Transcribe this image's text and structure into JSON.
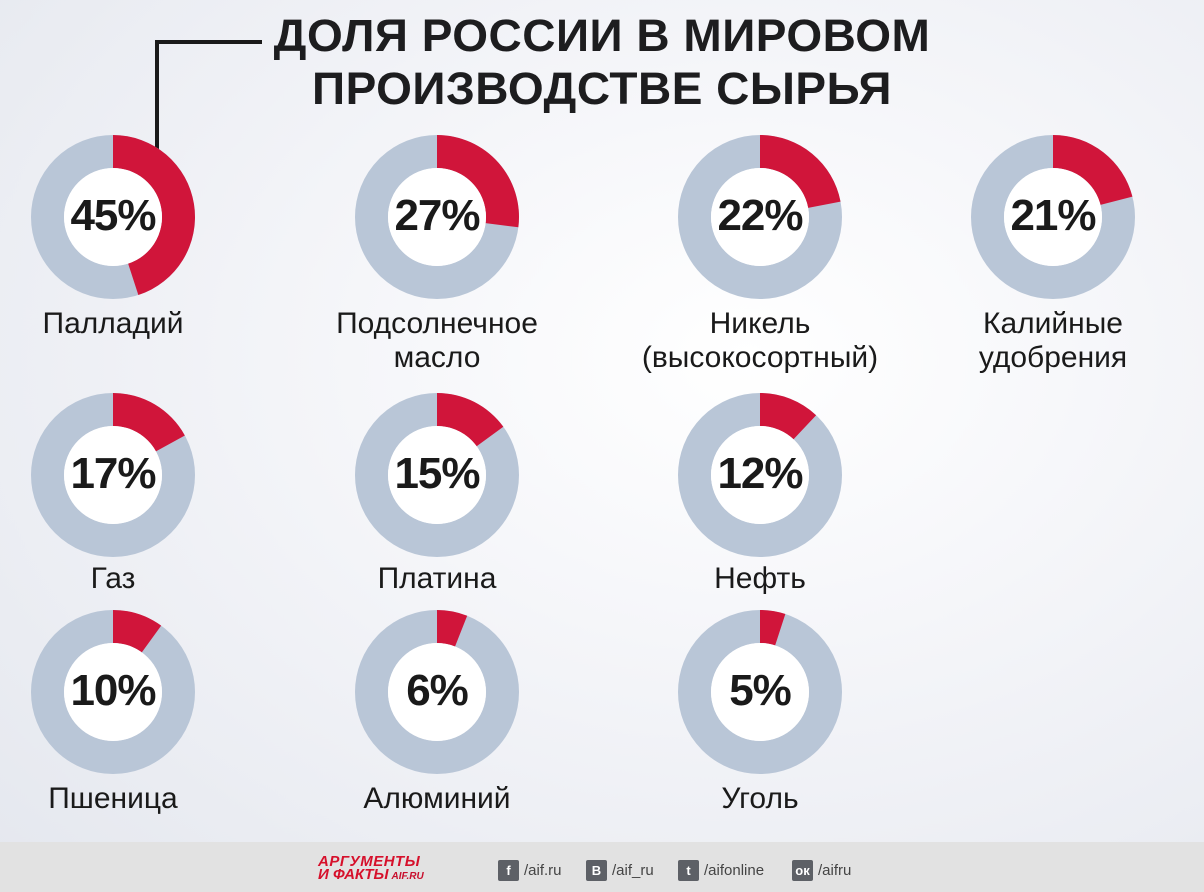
{
  "chart_data": {
    "type": "pie",
    "variant": "donut-grid",
    "title_lines": [
      "ДОЛЯ РОССИИ В МИРОВОМ",
      "ПРОИЗВОДСТВЕ СЫРЬЯ"
    ],
    "unit": "%",
    "colors": {
      "share": "#d0153a",
      "rest": "#b9c6d7",
      "center": "#ffffff"
    },
    "items": [
      {
        "value": 45,
        "value_label": "45%",
        "label_lines": [
          "Палладий"
        ]
      },
      {
        "value": 27,
        "value_label": "27%",
        "label_lines": [
          "Подсолнечное",
          "масло"
        ]
      },
      {
        "value": 22,
        "value_label": "22%",
        "label_lines": [
          "Никель",
          "(высокосортный)"
        ]
      },
      {
        "value": 21,
        "value_label": "21%",
        "label_lines": [
          "Калийные",
          "удобрения"
        ]
      },
      {
        "value": 17,
        "value_label": "17%",
        "label_lines": [
          "Газ"
        ]
      },
      {
        "value": 15,
        "value_label": "15%",
        "label_lines": [
          "Платина"
        ]
      },
      {
        "value": 12,
        "value_label": "12%",
        "label_lines": [
          "Нефть"
        ]
      },
      {
        "value": 10,
        "value_label": "10%",
        "label_lines": [
          "Пшеница"
        ]
      },
      {
        "value": 6,
        "value_label": "6%",
        "label_lines": [
          "Алюминий"
        ]
      },
      {
        "value": 5,
        "value_label": "5%",
        "label_lines": [
          "Уголь"
        ]
      }
    ]
  },
  "footer": {
    "brand_line1": "АРГУМЕНТЫ",
    "brand_line2": "И ФАКТЫ",
    "brand_site": "AIF.RU",
    "social": [
      {
        "icon": "facebook-icon",
        "glyph": "f",
        "handle": "/aif.ru"
      },
      {
        "icon": "vk-icon",
        "glyph": "В",
        "handle": "/aif_ru"
      },
      {
        "icon": "twitter-icon",
        "glyph": "t",
        "handle": "/aifonline"
      },
      {
        "icon": "odnoklassniki-icon",
        "glyph": "ок",
        "handle": "/aifru"
      }
    ]
  }
}
